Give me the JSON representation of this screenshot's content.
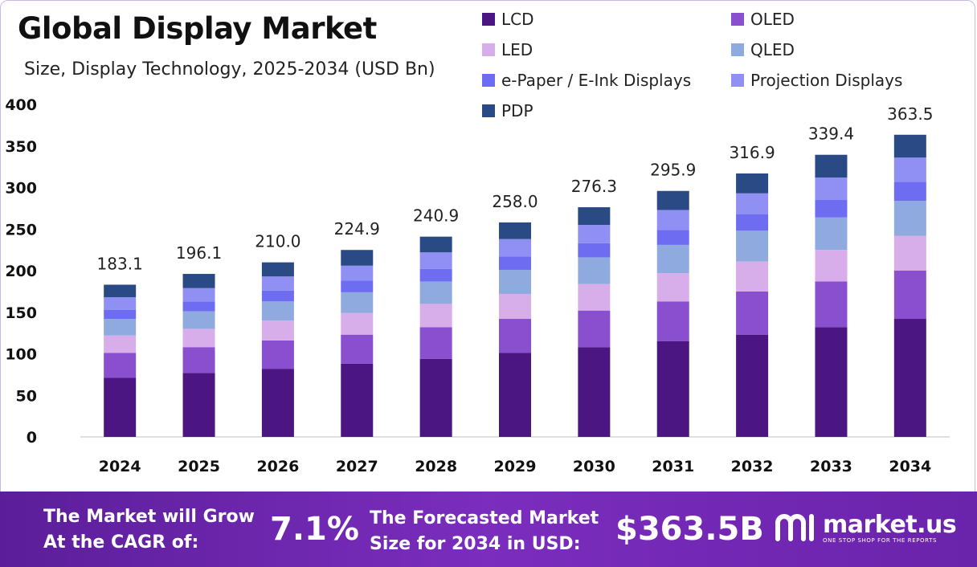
{
  "header": {
    "title": "Global Display Market",
    "subtitle": "Size, Display Technology, 2025-2034 (USD Bn)"
  },
  "legend": [
    {
      "name": "LCD",
      "color": "#4b1582"
    },
    {
      "name": "OLED",
      "color": "#8a4fcf"
    },
    {
      "name": "LED",
      "color": "#d7aeea"
    },
    {
      "name": "QLED",
      "color": "#8faadf"
    },
    {
      "name": "e-Paper / E-Ink Displays",
      "color": "#6e6cf0"
    },
    {
      "name": "Projection Displays",
      "color": "#8f8ff4"
    },
    {
      "name": "PDP",
      "color": "#2a4a85"
    }
  ],
  "chart_data": {
    "type": "bar",
    "stacked": true,
    "categories": [
      "2024",
      "2025",
      "2026",
      "2027",
      "2028",
      "2029",
      "2030",
      "2031",
      "2032",
      "2033",
      "2034"
    ],
    "ylim": [
      0,
      400
    ],
    "yticks": [
      "0",
      "50",
      "100",
      "150",
      "200",
      "250",
      "300",
      "350",
      "400"
    ],
    "totals": [
      "183.1",
      "196.1",
      "210.0",
      "224.9",
      "240.9",
      "258.0",
      "276.3",
      "295.9",
      "316.9",
      "339.4",
      "363.5"
    ],
    "series": [
      {
        "name": "LCD",
        "values": [
          71,
          77,
          82,
          88,
          94,
          101,
          108,
          115,
          123,
          132,
          142
        ]
      },
      {
        "name": "OLED",
        "values": [
          30,
          31,
          34,
          35,
          38,
          41,
          44,
          48,
          52,
          55,
          58
        ]
      },
      {
        "name": "LED",
        "values": [
          21,
          22,
          24,
          26,
          28,
          30,
          32,
          34,
          36,
          38,
          42
        ]
      },
      {
        "name": "QLED",
        "values": [
          20,
          21,
          23,
          25,
          27,
          29,
          32,
          34,
          37,
          39,
          42
        ]
      },
      {
        "name": "e-Paper / E-Ink Displays",
        "values": [
          11,
          12,
          13,
          14,
          15,
          16,
          17,
          18,
          20,
          21,
          23
        ]
      },
      {
        "name": "Projection Displays",
        "values": [
          15,
          16,
          17,
          18,
          20,
          21,
          22,
          24,
          25,
          27,
          29
        ]
      },
      {
        "name": "PDP",
        "values": [
          15.1,
          17.1,
          17,
          18.9,
          18.9,
          20,
          21.3,
          22.9,
          23.9,
          27.4,
          27.5
        ]
      }
    ],
    "grid": false,
    "legend_position": "top-right"
  },
  "banner": {
    "cagr_label_line1": "The Market will Grow",
    "cagr_label_line2": "At the CAGR of:",
    "cagr_value": "7.1%",
    "forecast_label_line1": "The Forecasted Market",
    "forecast_label_line2": "Size for 2034 in USD:",
    "forecast_value": "$363.5B",
    "logo_name": "market.us",
    "logo_tagline": "ONE STOP SHOP FOR THE REPORTS"
  }
}
